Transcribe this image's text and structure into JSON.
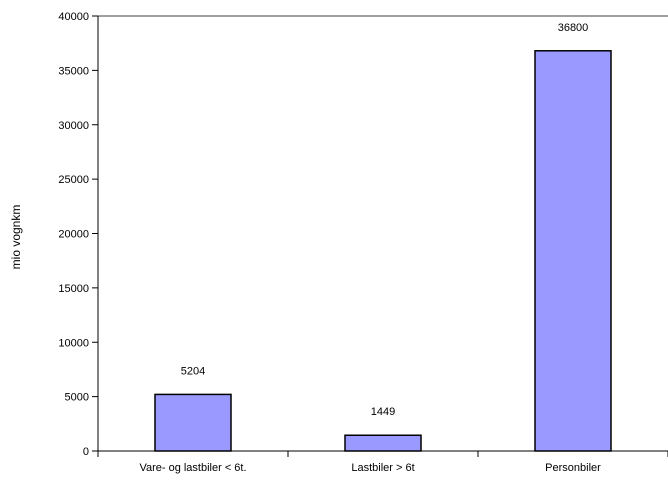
{
  "chart_data": {
    "type": "bar",
    "title": "",
    "xlabel": "",
    "ylabel": "mio vognkm",
    "categories": [
      "Vare- og lastbiler < 6t.",
      "Lastbiler > 6t",
      "Personbiler"
    ],
    "values": [
      5204,
      1449,
      36800
    ],
    "data_labels": [
      "5204",
      "1449",
      "36800"
    ],
    "ylim": [
      0,
      40000
    ],
    "yticks": [
      0,
      5000,
      10000,
      15000,
      20000,
      25000,
      30000,
      35000,
      40000
    ],
    "ytick_labels": [
      "0",
      "5000",
      "10000",
      "15000",
      "20000",
      "25000",
      "30000",
      "35000",
      "40000"
    ],
    "grid": false,
    "legend": "none",
    "bar_color": "#9999ff",
    "bar_edge_color": "#000000",
    "axis_color": "#808080"
  }
}
